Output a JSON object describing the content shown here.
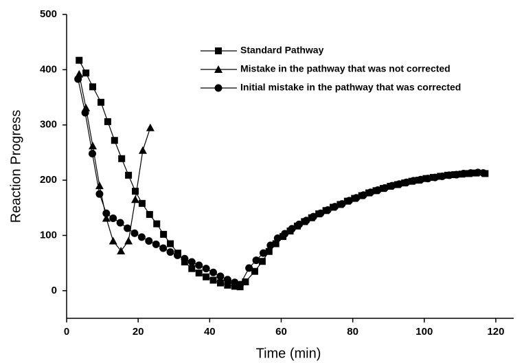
{
  "chart_data": {
    "type": "line",
    "x_label": "Time (min)",
    "y_label": "Reaction Progress",
    "xlim": [
      0,
      125
    ],
    "ylim": [
      -50,
      500
    ],
    "xticks": [
      0,
      20,
      40,
      60,
      80,
      100,
      120
    ],
    "yticks": [
      0,
      100,
      200,
      300,
      400,
      500
    ],
    "legend": "top-right",
    "series": [
      {
        "name": "Standard Pathway",
        "color": "#000000",
        "marker": "square",
        "x": [
          3.5,
          5.4,
          7.3,
          9.6,
          11.5,
          13.4,
          15.4,
          17.3,
          19.2,
          21.1,
          23.2,
          25.2,
          27.1,
          29,
          31.1,
          33,
          35,
          37,
          39,
          41,
          43,
          45,
          47,
          48.5,
          50,
          52.6,
          54.7,
          56.6,
          58.5,
          60.5,
          62.5,
          64.5,
          66.5,
          68.5,
          70.5,
          72.5,
          74.5,
          76.5,
          78.5,
          80.5,
          82.5,
          84.5,
          86.5,
          88.5,
          90.5,
          92.5,
          94.5,
          96.5,
          98.5,
          100.5,
          102.5,
          104.5,
          106.5,
          108.5,
          110.5,
          112.5,
          114.5,
          117
        ],
        "values": [
          417,
          394,
          369,
          341,
          306,
          272,
          239,
          209,
          180,
          158,
          138,
          121,
          102,
          85,
          68,
          52,
          40,
          32,
          25,
          19,
          14,
          10,
          8,
          7,
          16,
          35,
          53,
          71,
          85,
          98,
          108,
          117,
          125,
          132,
          139,
          145,
          151,
          156,
          162,
          167,
          172,
          177,
          181,
          185,
          189,
          192,
          195,
          198,
          200,
          203,
          205,
          207,
          209,
          210,
          211,
          212,
          213,
          212
        ]
      },
      {
        "name": "Mistake in the pathway that was not corrected",
        "color": "#000000",
        "marker": "triangle",
        "x": [
          3.5,
          5.4,
          7.3,
          9.2,
          11.1,
          13,
          15.2,
          17.3,
          19.2,
          21.3,
          23.4
        ],
        "values": [
          392,
          331,
          262,
          190,
          131,
          90,
          72,
          90,
          165,
          254,
          295
        ]
      },
      {
        "name": "Initial mistake in the pathway that was corrected",
        "color": "#000000",
        "marker": "circle",
        "x": [
          3.2,
          5.2,
          7.2,
          9.2,
          11.1,
          13,
          15,
          17,
          19,
          21,
          23,
          25,
          27,
          29,
          31,
          33,
          35,
          37,
          39,
          41,
          43,
          45,
          47,
          48.5,
          51,
          53,
          55,
          57,
          59,
          61,
          63,
          65,
          67,
          69,
          71,
          73,
          75,
          77,
          79,
          81,
          83,
          85,
          87,
          89,
          91,
          93,
          95,
          97,
          99,
          101,
          103,
          105,
          107,
          109,
          111,
          113,
          115,
          116.5
        ],
        "values": [
          383,
          322,
          248,
          175,
          140,
          131,
          123,
          113,
          104,
          97,
          90,
          84,
          77,
          70,
          64,
          58,
          52,
          46,
          40,
          33,
          26,
          20,
          15,
          11,
          41,
          55,
          68,
          82,
          95,
          103,
          112,
          120,
          127,
          134,
          140,
          146,
          152,
          157,
          163,
          168,
          173,
          178,
          182,
          186,
          190,
          193,
          196,
          199,
          201,
          203,
          205,
          207,
          209,
          210,
          212,
          213,
          214,
          213
        ]
      }
    ]
  }
}
